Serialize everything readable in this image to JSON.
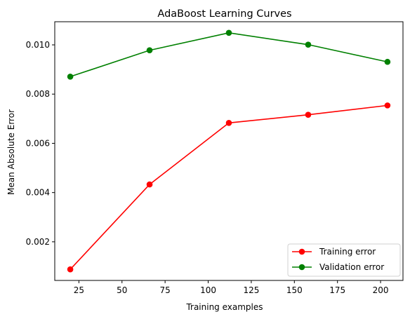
{
  "chart_data": {
    "type": "line",
    "title": "AdaBoost Learning Curves",
    "xlabel": "Training examples",
    "ylabel": "Mean Absolute Error",
    "x": [
      20,
      66,
      112,
      158,
      204
    ],
    "xlim": [
      11,
      213
    ],
    "ylim": [
      0.00043,
      0.01094
    ],
    "x_ticks": [
      25,
      50,
      75,
      100,
      125,
      150,
      175,
      200
    ],
    "x_tick_labels": [
      "25",
      "50",
      "75",
      "100",
      "125",
      "150",
      "175",
      "200"
    ],
    "y_ticks": [
      0.002,
      0.004,
      0.006,
      0.008,
      0.01
    ],
    "y_tick_labels": [
      "0.002",
      "0.004",
      "0.006",
      "0.008",
      "0.010"
    ],
    "grid": false,
    "legend_position": "lower-right",
    "series": [
      {
        "name": "Training error",
        "color": "#ff0000",
        "marker": "circle",
        "values": [
          0.00088,
          0.00433,
          0.00683,
          0.00716,
          0.00754
        ]
      },
      {
        "name": "Validation error",
        "color": "#008000",
        "marker": "circle",
        "values": [
          0.00871,
          0.00978,
          0.01049,
          0.01001,
          0.00931
        ]
      }
    ]
  }
}
